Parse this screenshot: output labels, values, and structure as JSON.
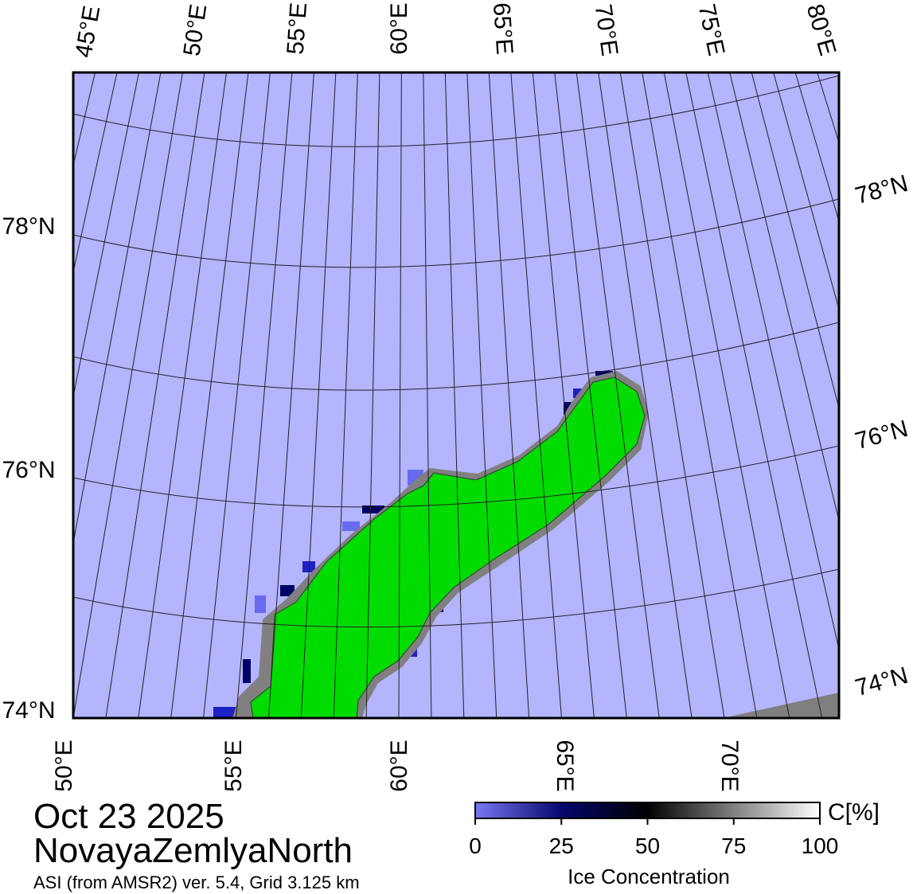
{
  "header": {
    "date": "Oct 23 2025",
    "region": "NovayaZemlyaNorth",
    "source": "ASI (from AMSR2) ver. 5.4,  Grid 3.125 km"
  },
  "map": {
    "top_labels": [
      "45°E",
      "50°E",
      "55°E",
      "60°E",
      "65°E",
      "70°E",
      "75°E",
      "80°E"
    ],
    "bottom_labels": [
      "50°E",
      "55°E",
      "60°E",
      "65°E",
      "70°E"
    ],
    "left_labels": [
      "78°N",
      "76°N",
      "74°N"
    ],
    "right_labels": [
      "78°N",
      "76°N",
      "74°N"
    ]
  },
  "colorbar": {
    "unit": "C[%]",
    "title": "Ice Concentration",
    "range": [
      0,
      100
    ],
    "ticks": [
      0,
      25,
      50,
      75,
      100
    ]
  }
}
